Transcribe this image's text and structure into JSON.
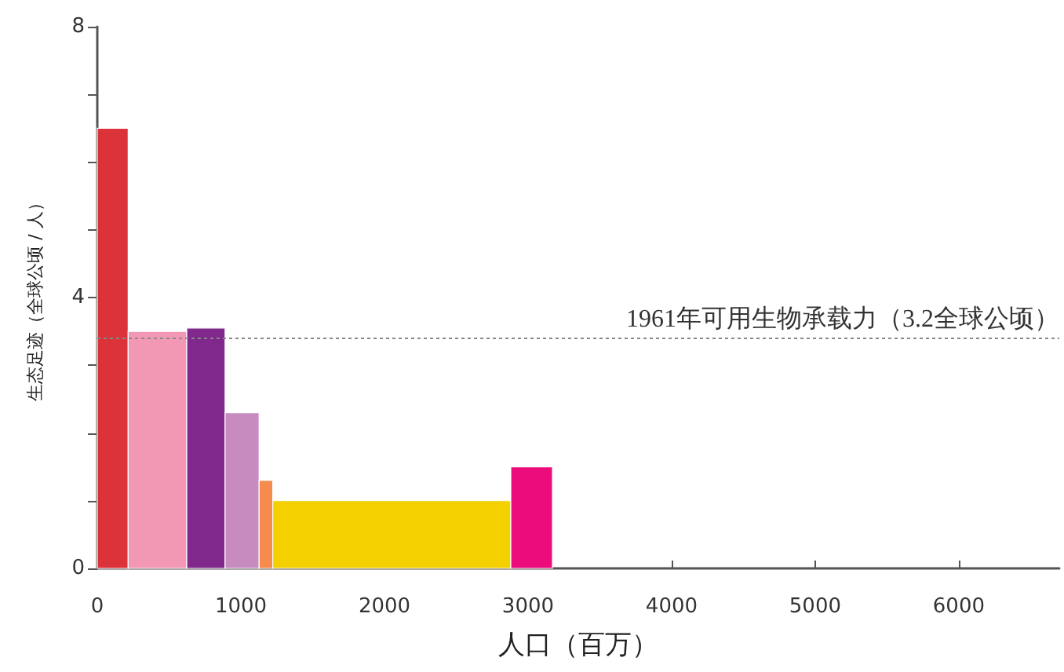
{
  "chart_data": {
    "type": "histogram",
    "xlabel": "人口（百万）",
    "ylabel": "生态足迹（全球公顷 / 人）",
    "bins": [
      0,
      215,
      623,
      890,
      1127,
      1222,
      2880,
      3170
    ],
    "values": [
      6.5,
      3.5,
      3.55,
      2.3,
      1.3,
      1.0,
      1.5
    ],
    "colors": [
      "#dc333b",
      "#f298b5",
      "#81288c",
      "#c78bc0",
      "#f58b4c",
      "#f4d000",
      "#ec0c7c"
    ],
    "xlim": [
      0,
      6700
    ],
    "xticks": [
      0,
      1000,
      2000,
      3000,
      4000,
      5000,
      6000
    ],
    "ylim": [
      0,
      8
    ],
    "yticks": [
      0,
      {
        "value": 1,
        "label": null
      },
      {
        "value": 2,
        "label": null
      },
      {
        "value": 3,
        "label": null
      },
      4,
      {
        "value": 5,
        "label": null
      },
      {
        "value": 6,
        "label": null
      },
      {
        "value": 7,
        "label": null
      },
      8
    ],
    "ref_lines": [
      {
        "axis": "y",
        "value": 3.4,
        "label": "1961年可用生物承载力（3.2全球公顷）",
        "color": "#888888",
        "line_style": "dotted"
      }
    ]
  }
}
